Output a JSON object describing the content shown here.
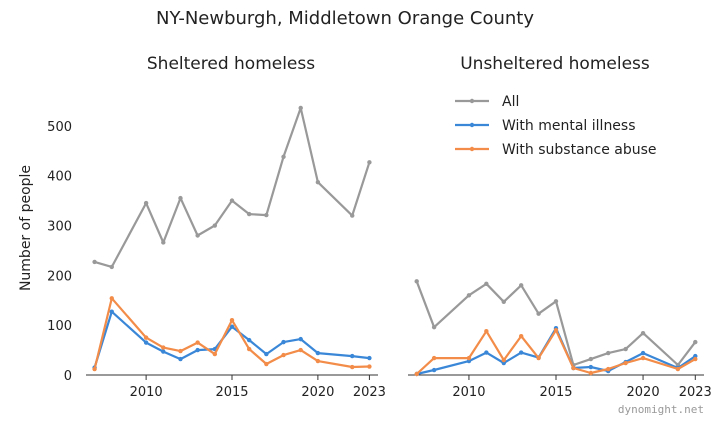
{
  "suptitle": "NY-Newburgh, Middletown Orange County",
  "watermark": "dynomight.net",
  "chart_data": [
    {
      "type": "line",
      "title": "Sheltered homeless",
      "xlabel": "",
      "ylabel": "Number of people",
      "xlim": [
        2006.5,
        2023.5
      ],
      "ylim": [
        0,
        560
      ],
      "xticks": [
        2010,
        2015,
        2020,
        2023
      ],
      "yticks": [
        0,
        100,
        200,
        300,
        400,
        500
      ],
      "grid": false,
      "series": [
        {
          "name": "All",
          "color": "#999999",
          "x": [
            2007,
            2008,
            2010,
            2011,
            2012,
            2013,
            2014,
            2015,
            2016,
            2017,
            2018,
            2019,
            2020,
            2022,
            2023
          ],
          "y": [
            227,
            217,
            345,
            266,
            355,
            280,
            300,
            350,
            323,
            321,
            438,
            536,
            387,
            320,
            427
          ]
        },
        {
          "name": "With mental illness",
          "color": "#3a87d8",
          "x": [
            2007,
            2008,
            2010,
            2011,
            2012,
            2013,
            2014,
            2015,
            2016,
            2017,
            2018,
            2019,
            2020,
            2022,
            2023
          ],
          "y": [
            15,
            127,
            65,
            47,
            32,
            50,
            52,
            97,
            70,
            42,
            66,
            72,
            44,
            38,
            34
          ]
        },
        {
          "name": "With substance abuse",
          "color": "#f28c48",
          "x": [
            2007,
            2008,
            2010,
            2011,
            2012,
            2013,
            2014,
            2015,
            2016,
            2017,
            2018,
            2019,
            2020,
            2022,
            2023
          ],
          "y": [
            12,
            154,
            75,
            55,
            48,
            65,
            42,
            110,
            52,
            22,
            40,
            50,
            28,
            16,
            17
          ]
        }
      ]
    },
    {
      "type": "line",
      "title": "Unsheltered homeless",
      "xlabel": "",
      "ylabel": "",
      "xlim": [
        2006.5,
        2023.5
      ],
      "ylim": [
        0,
        560
      ],
      "xticks": [
        2010,
        2015,
        2020,
        2023
      ],
      "yticks": [],
      "grid": false,
      "legend": "top-right",
      "series": [
        {
          "name": "All",
          "color": "#999999",
          "x": [
            2007,
            2008,
            2010,
            2011,
            2012,
            2013,
            2014,
            2015,
            2016,
            2017,
            2018,
            2019,
            2020,
            2022,
            2023
          ],
          "y": [
            188,
            96,
            160,
            183,
            147,
            180,
            123,
            148,
            20,
            32,
            44,
            52,
            84,
            20,
            66
          ]
        },
        {
          "name": "With mental illness",
          "color": "#3a87d8",
          "x": [
            2007,
            2008,
            2010,
            2011,
            2012,
            2013,
            2014,
            2015,
            2016,
            2017,
            2018,
            2019,
            2020,
            2022,
            2023
          ],
          "y": [
            2,
            10,
            28,
            45,
            24,
            45,
            35,
            94,
            14,
            16,
            8,
            26,
            44,
            14,
            38
          ]
        },
        {
          "name": "With substance abuse",
          "color": "#f28c48",
          "x": [
            2007,
            2008,
            2010,
            2011,
            2012,
            2013,
            2014,
            2015,
            2016,
            2017,
            2018,
            2019,
            2020,
            2022,
            2023
          ],
          "y": [
            2,
            34,
            34,
            88,
            30,
            78,
            34,
            90,
            14,
            4,
            12,
            24,
            34,
            12,
            32
          ]
        }
      ]
    }
  ]
}
